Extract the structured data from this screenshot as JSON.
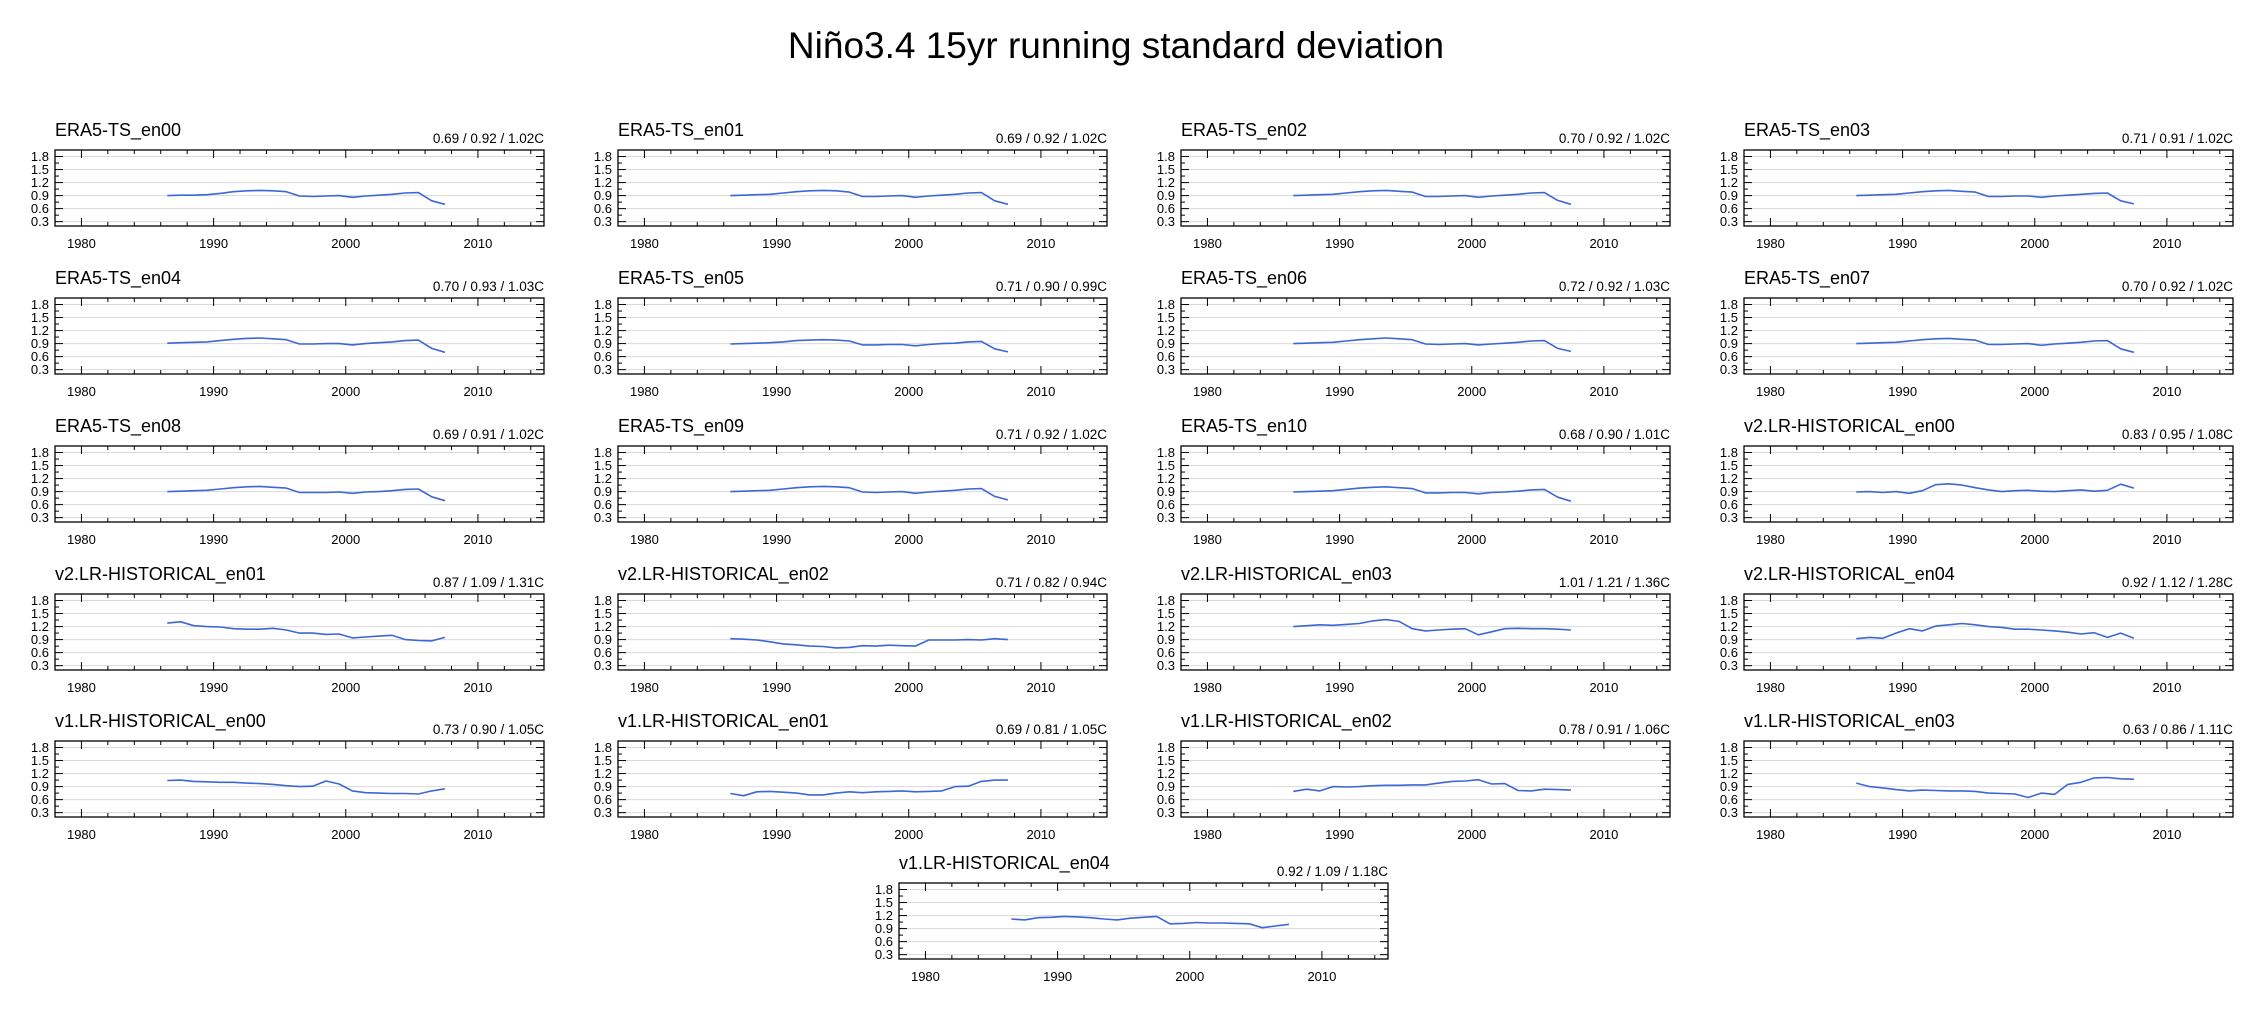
{
  "figure": {
    "title": "Niño3.4 15yr running standard deviation"
  },
  "style": {
    "line_color": "#3e67d6",
    "grid_color": "#d9d9d9",
    "axis_color": "#000000"
  },
  "chart_data": {
    "type": "line",
    "title": "Niño3.4 15yr running standard deviation",
    "xlim": [
      1978,
      2015
    ],
    "ylim": [
      0.2,
      1.95
    ],
    "xticks": [
      1980,
      1990,
      2000,
      2010
    ],
    "yticks": [
      0.3,
      0.6,
      0.9,
      1.2,
      1.5,
      1.8
    ],
    "ytick_labels": [
      "0.3",
      "0.6",
      "0.9",
      "1.2",
      "1.5",
      "1.8"
    ],
    "grid": true,
    "x": [
      1986.5,
      1987.5,
      1988.5,
      1989.5,
      1990.5,
      1991.5,
      1992.5,
      1993.5,
      1994.5,
      1995.5,
      1996.5,
      1997.5,
      1998.5,
      1999.5,
      2000.5,
      2001.5,
      2002.5,
      2003.5,
      2004.5,
      2005.5,
      2006.5,
      2007.5
    ],
    "panels": [
      {
        "name": "ERA5-TS_en00",
        "stats": "0.69 / 0.92 / 1.02C",
        "values": [
          0.9,
          0.91,
          0.91,
          0.92,
          0.95,
          0.99,
          1.01,
          1.02,
          1.01,
          0.99,
          0.89,
          0.88,
          0.89,
          0.9,
          0.86,
          0.89,
          0.91,
          0.93,
          0.96,
          0.97,
          0.78,
          0.7
        ]
      },
      {
        "name": "ERA5-TS_en01",
        "stats": "0.69 / 0.92 / 1.02C",
        "values": [
          0.9,
          0.91,
          0.92,
          0.93,
          0.96,
          0.99,
          1.01,
          1.02,
          1.01,
          0.98,
          0.88,
          0.88,
          0.89,
          0.9,
          0.86,
          0.89,
          0.91,
          0.93,
          0.96,
          0.97,
          0.78,
          0.7
        ]
      },
      {
        "name": "ERA5-TS_en02",
        "stats": "0.70 / 0.92 / 1.02C",
        "values": [
          0.9,
          0.91,
          0.92,
          0.93,
          0.96,
          0.99,
          1.01,
          1.02,
          1.0,
          0.98,
          0.88,
          0.88,
          0.89,
          0.9,
          0.86,
          0.89,
          0.91,
          0.93,
          0.96,
          0.97,
          0.79,
          0.7
        ]
      },
      {
        "name": "ERA5-TS_en03",
        "stats": "0.71 / 0.91 / 1.02C",
        "values": [
          0.9,
          0.91,
          0.92,
          0.93,
          0.96,
          0.99,
          1.01,
          1.02,
          1.0,
          0.98,
          0.88,
          0.88,
          0.89,
          0.89,
          0.86,
          0.89,
          0.91,
          0.93,
          0.95,
          0.96,
          0.78,
          0.71
        ]
      },
      {
        "name": "ERA5-TS_en04",
        "stats": "0.70 / 0.93 / 1.03C",
        "values": [
          0.91,
          0.92,
          0.93,
          0.94,
          0.97,
          1.0,
          1.02,
          1.03,
          1.01,
          0.99,
          0.89,
          0.89,
          0.9,
          0.9,
          0.87,
          0.9,
          0.92,
          0.94,
          0.97,
          0.98,
          0.79,
          0.7
        ]
      },
      {
        "name": "ERA5-TS_en05",
        "stats": "0.71 / 0.90 / 0.99C",
        "values": [
          0.89,
          0.9,
          0.91,
          0.92,
          0.94,
          0.97,
          0.98,
          0.99,
          0.98,
          0.96,
          0.87,
          0.87,
          0.88,
          0.88,
          0.85,
          0.88,
          0.9,
          0.91,
          0.94,
          0.95,
          0.78,
          0.71
        ]
      },
      {
        "name": "ERA5-TS_en06",
        "stats": "0.72 / 0.92 / 1.03C",
        "values": [
          0.9,
          0.91,
          0.92,
          0.93,
          0.96,
          0.99,
          1.01,
          1.03,
          1.01,
          0.99,
          0.89,
          0.88,
          0.89,
          0.9,
          0.87,
          0.89,
          0.91,
          0.93,
          0.96,
          0.97,
          0.79,
          0.72
        ]
      },
      {
        "name": "ERA5-TS_en07",
        "stats": "0.70 / 0.92 / 1.02C",
        "values": [
          0.9,
          0.91,
          0.92,
          0.93,
          0.96,
          0.99,
          1.01,
          1.02,
          1.0,
          0.98,
          0.88,
          0.88,
          0.89,
          0.9,
          0.86,
          0.89,
          0.91,
          0.93,
          0.96,
          0.97,
          0.78,
          0.7
        ]
      },
      {
        "name": "ERA5-TS_en08",
        "stats": "0.69 / 0.91 / 1.02C",
        "values": [
          0.9,
          0.91,
          0.92,
          0.93,
          0.96,
          0.99,
          1.01,
          1.02,
          1.0,
          0.98,
          0.88,
          0.88,
          0.88,
          0.89,
          0.86,
          0.89,
          0.9,
          0.92,
          0.95,
          0.96,
          0.78,
          0.69
        ]
      },
      {
        "name": "ERA5-TS_en09",
        "stats": "0.71 / 0.92 / 1.02C",
        "values": [
          0.9,
          0.91,
          0.92,
          0.93,
          0.96,
          0.99,
          1.01,
          1.02,
          1.01,
          0.99,
          0.89,
          0.88,
          0.89,
          0.9,
          0.86,
          0.89,
          0.91,
          0.93,
          0.96,
          0.97,
          0.79,
          0.71
        ]
      },
      {
        "name": "ERA5-TS_en10",
        "stats": "0.68 / 0.90 / 1.01C",
        "values": [
          0.89,
          0.9,
          0.91,
          0.92,
          0.95,
          0.98,
          1.0,
          1.01,
          0.99,
          0.97,
          0.87,
          0.87,
          0.88,
          0.88,
          0.85,
          0.88,
          0.89,
          0.91,
          0.94,
          0.95,
          0.77,
          0.68
        ]
      },
      {
        "name": "v2.LR-HISTORICAL_en00",
        "stats": "0.83 / 0.95 / 1.08C",
        "values": [
          0.89,
          0.9,
          0.88,
          0.9,
          0.86,
          0.92,
          1.06,
          1.08,
          1.05,
          0.99,
          0.94,
          0.9,
          0.92,
          0.93,
          0.91,
          0.9,
          0.92,
          0.94,
          0.91,
          0.93,
          1.07,
          0.98
        ]
      },
      {
        "name": "v2.LR-HISTORICAL_en01",
        "stats": "0.87 / 1.09 / 1.31C",
        "values": [
          1.28,
          1.31,
          1.22,
          1.2,
          1.19,
          1.15,
          1.14,
          1.14,
          1.16,
          1.12,
          1.05,
          1.05,
          1.02,
          1.03,
          0.94,
          0.96,
          0.98,
          1.0,
          0.9,
          0.88,
          0.87,
          0.95
        ]
      },
      {
        "name": "v2.LR-HISTORICAL_en02",
        "stats": "0.71 / 0.82 / 0.94C",
        "values": [
          0.92,
          0.91,
          0.89,
          0.85,
          0.8,
          0.78,
          0.75,
          0.74,
          0.71,
          0.72,
          0.76,
          0.75,
          0.77,
          0.76,
          0.75,
          0.89,
          0.89,
          0.89,
          0.9,
          0.89,
          0.92,
          0.9
        ]
      },
      {
        "name": "v2.LR-HISTORICAL_en03",
        "stats": "1.01 / 1.21 / 1.36C",
        "values": [
          1.2,
          1.22,
          1.24,
          1.23,
          1.25,
          1.27,
          1.33,
          1.36,
          1.32,
          1.15,
          1.1,
          1.12,
          1.14,
          1.15,
          1.01,
          1.08,
          1.15,
          1.16,
          1.15,
          1.15,
          1.14,
          1.12
        ]
      },
      {
        "name": "v2.LR-HISTORICAL_en04",
        "stats": "0.92 / 1.12 / 1.28C",
        "values": [
          0.92,
          0.95,
          0.93,
          1.05,
          1.15,
          1.1,
          1.21,
          1.24,
          1.27,
          1.24,
          1.2,
          1.18,
          1.14,
          1.14,
          1.12,
          1.1,
          1.07,
          1.03,
          1.06,
          0.95,
          1.05,
          0.93
        ]
      },
      {
        "name": "v1.LR-HISTORICAL_en00",
        "stats": "0.73 / 0.90 / 1.05C",
        "values": [
          1.04,
          1.05,
          1.02,
          1.01,
          1.0,
          1.0,
          0.98,
          0.97,
          0.95,
          0.92,
          0.9,
          0.91,
          1.03,
          0.96,
          0.8,
          0.76,
          0.75,
          0.74,
          0.74,
          0.73,
          0.8,
          0.85
        ]
      },
      {
        "name": "v1.LR-HISTORICAL_en01",
        "stats": "0.69 / 0.81 / 1.05C",
        "values": [
          0.74,
          0.69,
          0.78,
          0.79,
          0.77,
          0.75,
          0.71,
          0.71,
          0.75,
          0.78,
          0.76,
          0.78,
          0.79,
          0.8,
          0.78,
          0.79,
          0.8,
          0.9,
          0.91,
          1.02,
          1.05,
          1.05
        ]
      },
      {
        "name": "v1.LR-HISTORICAL_en02",
        "stats": "0.78 / 0.91 / 1.06C",
        "values": [
          0.79,
          0.84,
          0.8,
          0.9,
          0.89,
          0.9,
          0.92,
          0.93,
          0.93,
          0.94,
          0.94,
          0.98,
          1.02,
          1.03,
          1.06,
          0.96,
          0.97,
          0.81,
          0.8,
          0.84,
          0.83,
          0.82
        ]
      },
      {
        "name": "v1.LR-HISTORICAL_en03",
        "stats": "0.63 / 0.86 / 1.11C",
        "values": [
          0.98,
          0.9,
          0.87,
          0.83,
          0.8,
          0.82,
          0.81,
          0.8,
          0.8,
          0.79,
          0.75,
          0.74,
          0.73,
          0.65,
          0.75,
          0.72,
          0.95,
          1.0,
          1.1,
          1.11,
          1.08,
          1.07
        ]
      },
      {
        "name": "v1.LR-HISTORICAL_en04",
        "stats": "0.92 / 1.09 / 1.18C",
        "values": [
          1.12,
          1.1,
          1.15,
          1.16,
          1.18,
          1.17,
          1.15,
          1.12,
          1.1,
          1.14,
          1.16,
          1.18,
          1.01,
          1.02,
          1.04,
          1.03,
          1.03,
          1.02,
          1.01,
          0.92,
          0.96,
          1.0
        ]
      }
    ]
  }
}
